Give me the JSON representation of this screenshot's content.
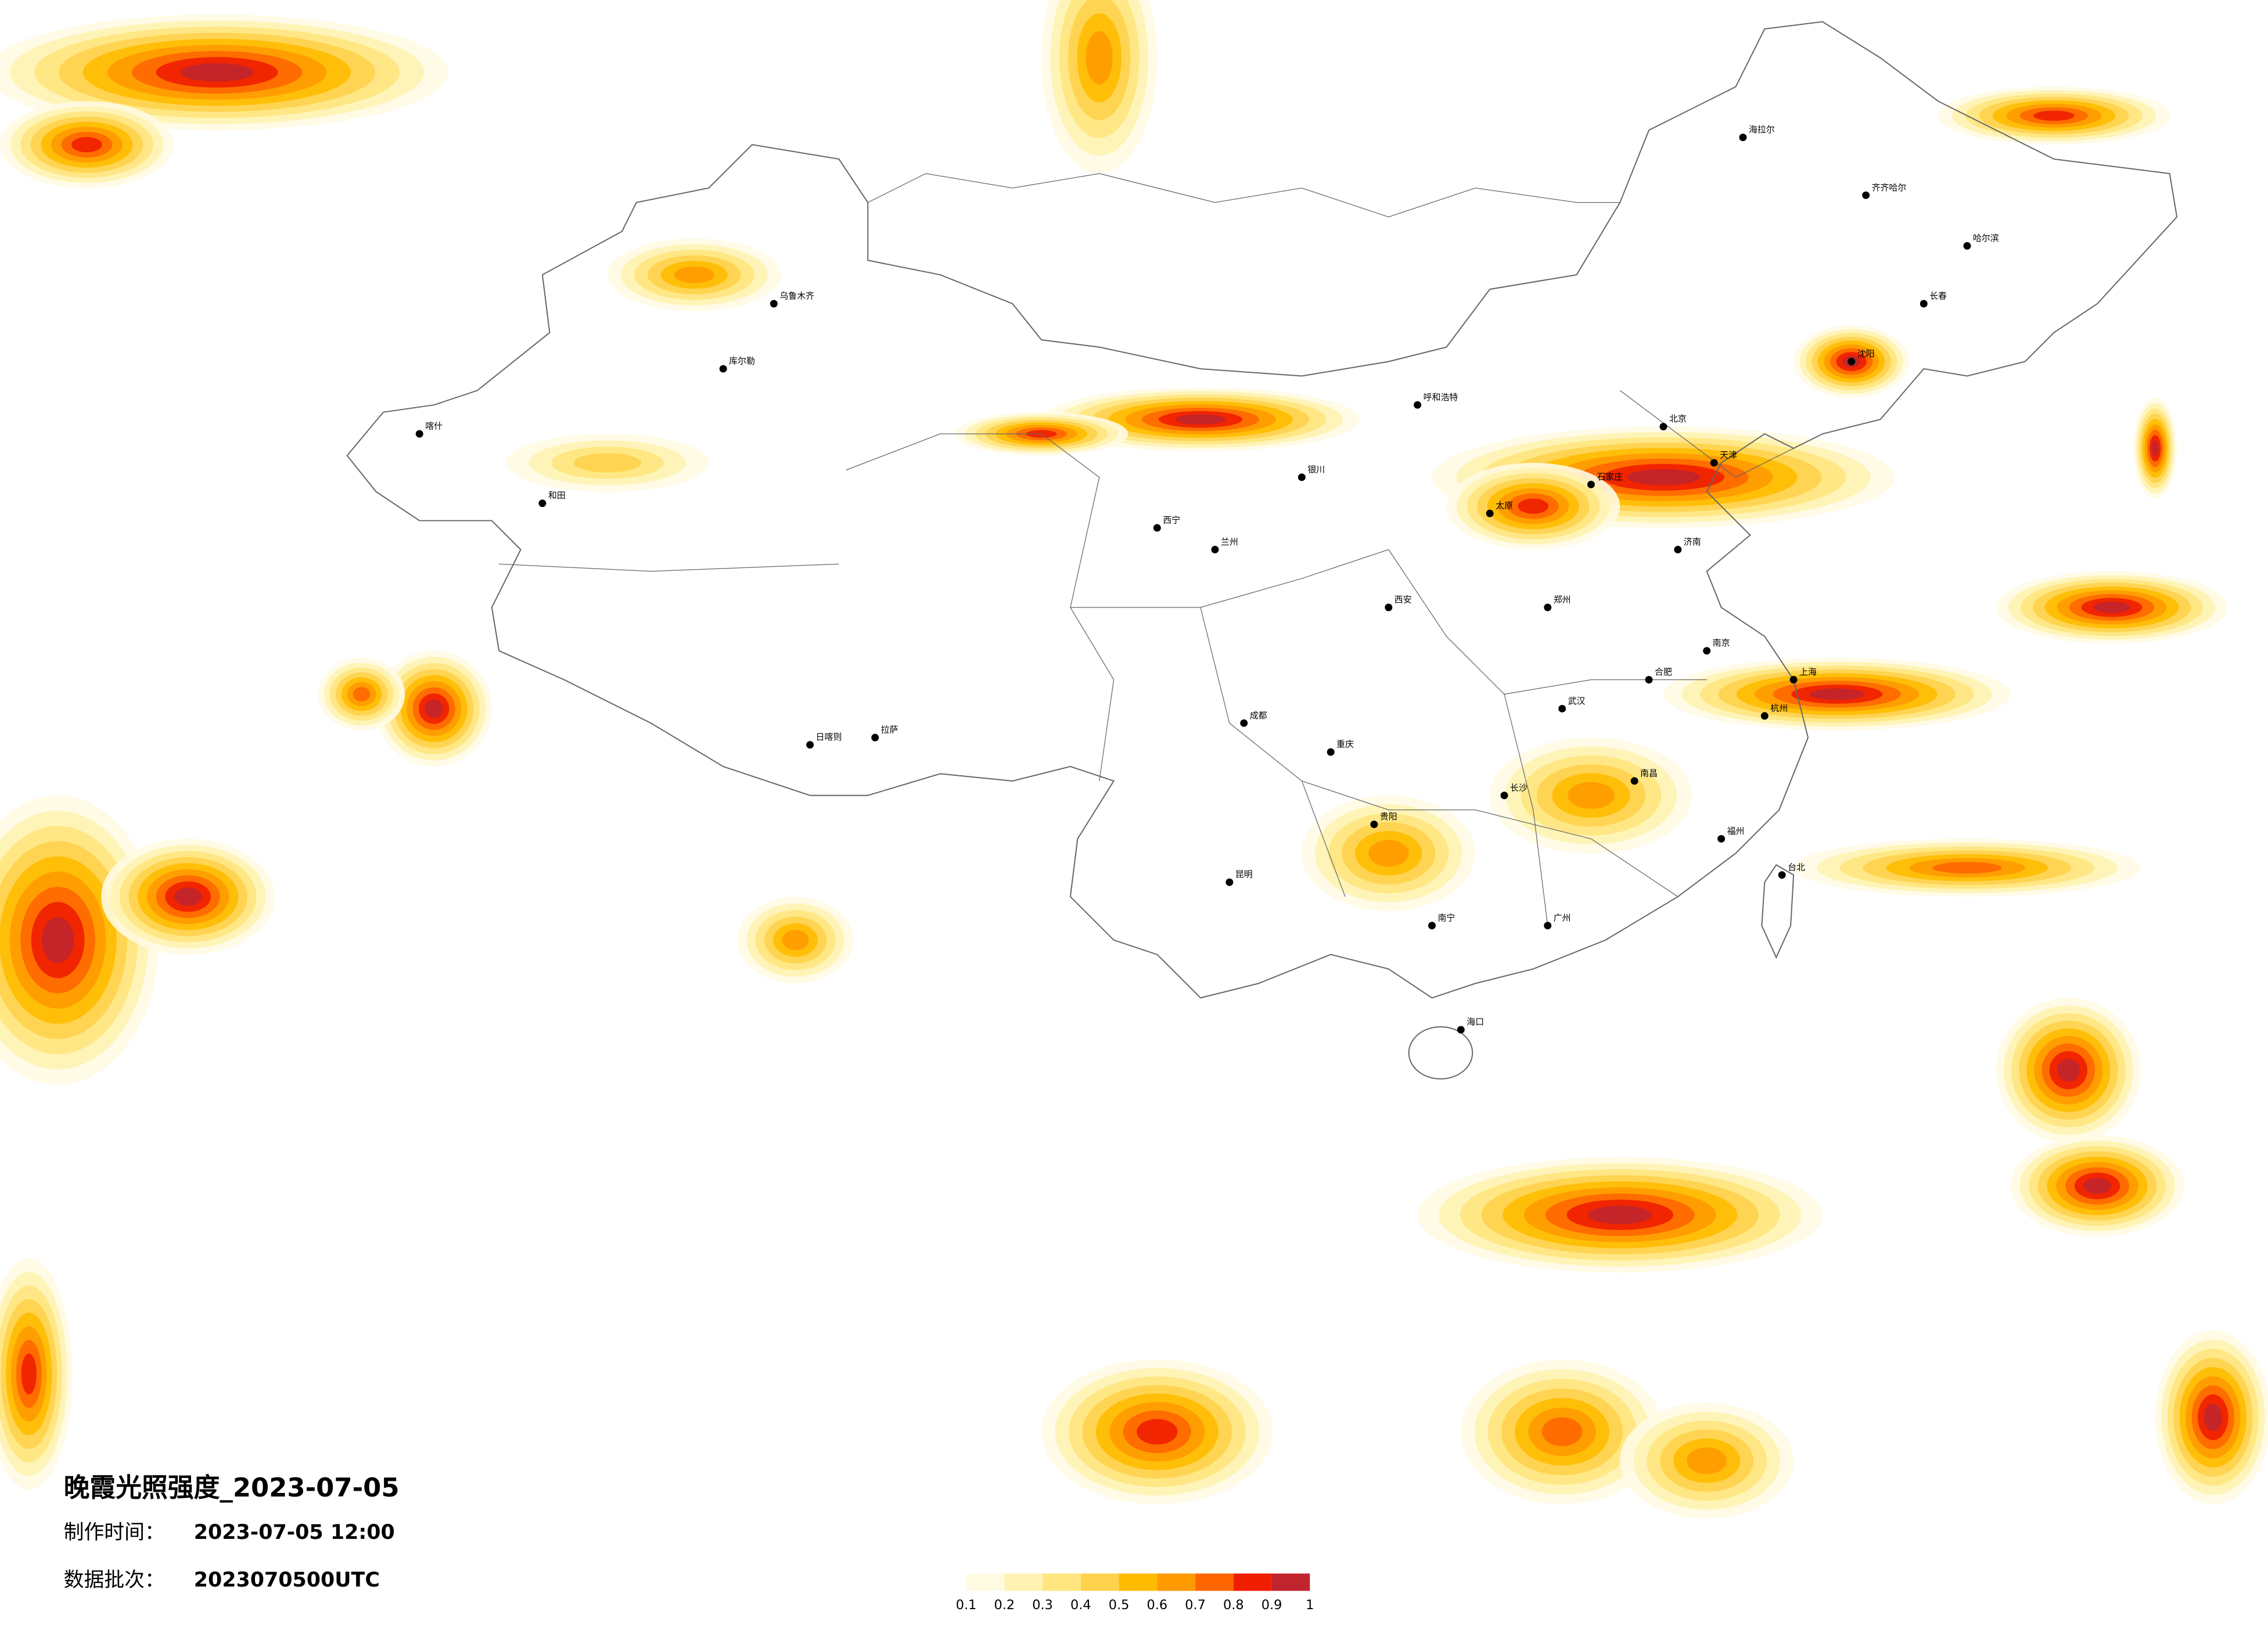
{
  "title": "晚霞光照强度_2023-07-05",
  "made": {
    "label": "制作时间：",
    "value": "2023-07-05 12:00"
  },
  "batch": {
    "label": "数据批次：",
    "value": "2023070500UTC"
  },
  "colorbar": {
    "ticks": [
      0.1,
      0.2,
      0.3,
      0.4,
      0.5,
      0.6,
      0.7,
      0.8,
      0.9,
      1
    ],
    "colors": [
      "#fffbe3",
      "#fff3b3",
      "#ffe680",
      "#ffd24d",
      "#ffbb00",
      "#ff9a00",
      "#ff6600",
      "#f01e00",
      "#c0252d"
    ]
  },
  "cities": [
    "哈尔滨",
    "长春",
    "沈阳",
    "北京",
    "天津",
    "石家庄",
    "太原",
    "呼和浩特",
    "济南",
    "郑州",
    "西安",
    "兰州",
    "银川",
    "西宁",
    "乌鲁木齐",
    "拉萨",
    "成都",
    "重庆",
    "贵阳",
    "昆明",
    "南宁",
    "广州",
    "长沙",
    "武汉",
    "南京",
    "上海",
    "杭州",
    "福州",
    "南昌",
    "合肥",
    "海口",
    "台北",
    "齐齐哈尔",
    "海拉尔",
    "和田",
    "日喀则",
    "喀什",
    "库尔勒"
  ]
}
